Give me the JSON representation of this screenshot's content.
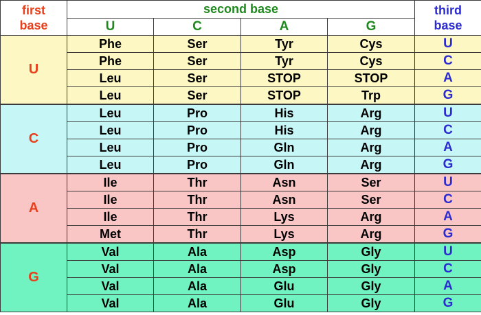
{
  "header": {
    "first_base": [
      "first",
      "base"
    ],
    "second_base": "second base",
    "third_base": [
      "third",
      "base"
    ],
    "second_columns": [
      "U",
      "C",
      "A",
      "G"
    ]
  },
  "groups": [
    {
      "base": "U",
      "color": "#fdf7c3",
      "rows": [
        {
          "aa": [
            "Phe",
            "Ser",
            "Tyr",
            "Cys"
          ],
          "third": "U"
        },
        {
          "aa": [
            "Phe",
            "Ser",
            "Tyr",
            "Cys"
          ],
          "third": "C"
        },
        {
          "aa": [
            "Leu",
            "Ser",
            "STOP",
            "STOP"
          ],
          "third": "A"
        },
        {
          "aa": [
            "Leu",
            "Ser",
            "STOP",
            "Trp"
          ],
          "third": "G"
        }
      ]
    },
    {
      "base": "C",
      "color": "#c7f6f7",
      "rows": [
        {
          "aa": [
            "Leu",
            "Pro",
            "His",
            "Arg"
          ],
          "third": "U"
        },
        {
          "aa": [
            "Leu",
            "Pro",
            "His",
            "Arg"
          ],
          "third": "C"
        },
        {
          "aa": [
            "Leu",
            "Pro",
            "Gln",
            "Arg"
          ],
          "third": "A"
        },
        {
          "aa": [
            "Leu",
            "Pro",
            "Gln",
            "Arg"
          ],
          "third": "G"
        }
      ]
    },
    {
      "base": "A",
      "color": "#f9c5c5",
      "rows": [
        {
          "aa": [
            "Ile",
            "Thr",
            "Asn",
            "Ser"
          ],
          "third": "U"
        },
        {
          "aa": [
            "Ile",
            "Thr",
            "Asn",
            "Ser"
          ],
          "third": "C"
        },
        {
          "aa": [
            "Ile",
            "Thr",
            "Lys",
            "Arg"
          ],
          "third": "A"
        },
        {
          "aa": [
            "Met",
            "Thr",
            "Lys",
            "Arg"
          ],
          "third": "G"
        }
      ]
    },
    {
      "base": "G",
      "color": "#70f2c1",
      "rows": [
        {
          "aa": [
            "Val",
            "Ala",
            "Asp",
            "Gly"
          ],
          "third": "U"
        },
        {
          "aa": [
            "Val",
            "Ala",
            "Asp",
            "Gly"
          ],
          "third": "C"
        },
        {
          "aa": [
            "Val",
            "Ala",
            "Glu",
            "Gly"
          ],
          "third": "A"
        },
        {
          "aa": [
            "Val",
            "Ala",
            "Glu",
            "Gly"
          ],
          "third": "G"
        }
      ]
    }
  ]
}
